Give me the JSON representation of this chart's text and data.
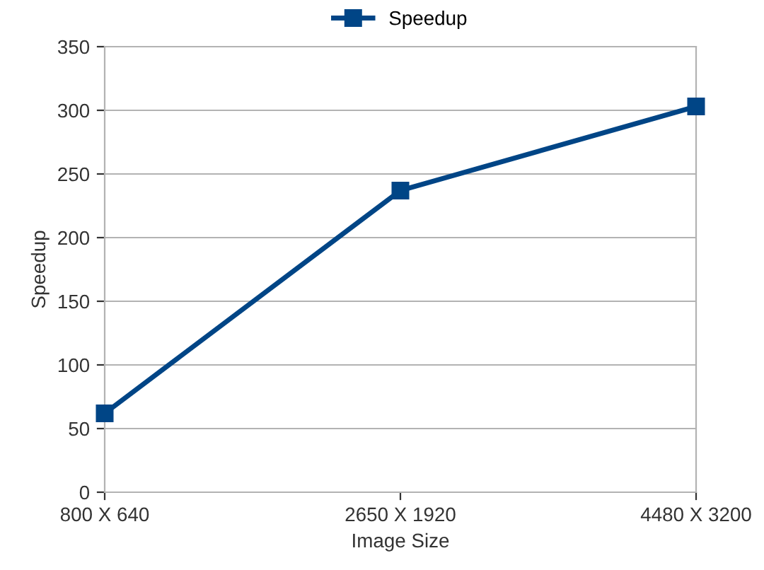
{
  "chart_data": {
    "type": "line",
    "xlabel": "Image Size",
    "ylabel": "Speedup",
    "categories": [
      "800 X 640",
      "2650 X 1920",
      "4480 X 3200"
    ],
    "series": [
      {
        "name": "Speedup",
        "color": "#004586",
        "values": [
          62,
          237,
          303
        ]
      }
    ],
    "ylim": [
      0,
      350
    ],
    "yticks": [
      0,
      50,
      100,
      150,
      200,
      250,
      300,
      350
    ],
    "grid": "y",
    "legend": "top",
    "marker": "square",
    "line_style": "solid"
  }
}
